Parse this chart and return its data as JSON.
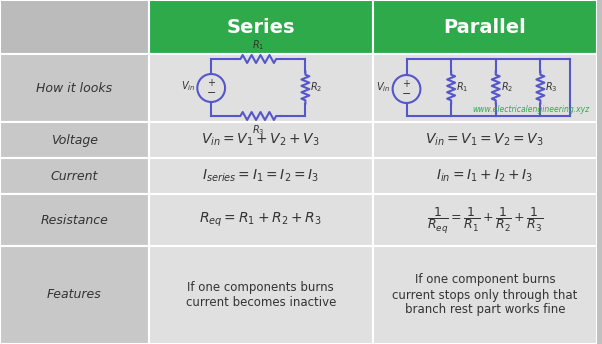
{
  "header_bg": "#2eaa4a",
  "header_text_color": "#ffffff",
  "cell_bg_label": "#c8c8c8",
  "cell_bg_content": "#e0e0e0",
  "header_label_bg": "#bbbbbb",
  "border_color": "#ffffff",
  "col_headers": [
    "Series",
    "Parallel"
  ],
  "row_labels": [
    "How it looks",
    "Voltage",
    "Current",
    "Resistance",
    "Features"
  ],
  "voltage_series": "$V_{in} = V_1 + V_2 + V_3$",
  "voltage_parallel": "$V_{in} = V_1 = V_2 = V_3$",
  "current_series": "$I_{series} = I_1 = I_2 = I_3$",
  "current_parallel": "$I_{in} = I_1 + I_2 + I_3$",
  "resistance_series": "$R_{eq} = R_1 + R_2 + R_3$",
  "resistance_parallel": "$\\dfrac{1}{R_{eq}} = \\dfrac{1}{R_1} + \\dfrac{1}{R_2} + \\dfrac{1}{R_3}$",
  "features_series": "If one components burns\ncurrent becomes inactive",
  "features_parallel": "If one component burns\ncurrent stops only through that\nbranch rest part works fine",
  "circuit_color": "#5555cc",
  "watermark": "www.electricalengineering.xyz",
  "watermark_color": "#2eaa4a",
  "figsize": [
    6.02,
    3.44
  ],
  "dpi": 100
}
